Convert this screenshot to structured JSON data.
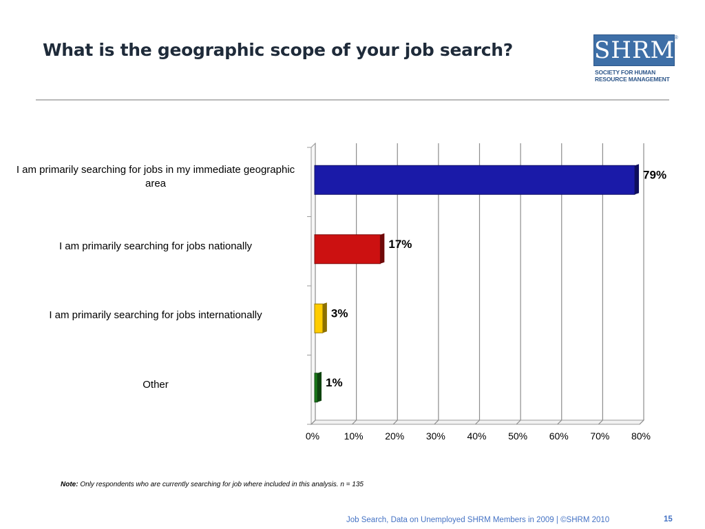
{
  "slide": {
    "title": "What is the geographic scope of your job search?",
    "note_label": "Note:",
    "note_text": "Only respondents who are currently  searching for job where included in this analysis. n = 135",
    "footer_text": "Job Search, Data on Unemployed SHRM Members in 2009 | ©SHRM 2010",
    "page_number": "15"
  },
  "logo": {
    "mark": "SHRM",
    "reg": "®",
    "line1": "SOCIETY FOR HUMAN",
    "line2": "RESOURCE MANAGEMENT",
    "color": "#3e6fa7"
  },
  "chart_data": {
    "type": "bar",
    "orientation": "horizontal",
    "categories": [
      "I am primarily searching for jobs in my immediate geographic area",
      "I am primarily searching for jobs nationally",
      "I am primarily searching for jobs internationally",
      "Other"
    ],
    "values": [
      79,
      17,
      3,
      1
    ],
    "value_labels": [
      "79%",
      "17%",
      "3%",
      "1%"
    ],
    "colors": [
      "#1a1aa8",
      "#cc1111",
      "#ffcc00",
      "#1a7a1a"
    ],
    "xlim": [
      0,
      80
    ],
    "x_ticks": [
      "0%",
      "10%",
      "20%",
      "30%",
      "40%",
      "50%",
      "60%",
      "70%",
      "80%"
    ],
    "grid": true,
    "style": "3d"
  }
}
